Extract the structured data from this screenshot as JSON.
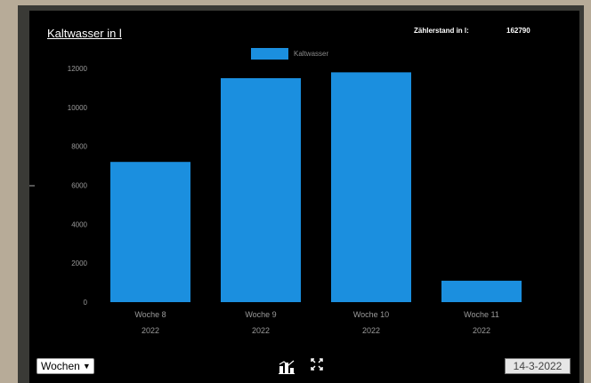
{
  "header": {
    "title": "Kaltwasser in l",
    "meter_label": "Zählerstand in l:",
    "meter_value": "162790"
  },
  "controls": {
    "period_selected": "Wochen",
    "date_value": "14-3-2022"
  },
  "icons": {
    "chart_type": "bar-chart-icon",
    "fullscreen": "fullscreen-icon",
    "dropdown": "chevron-down-icon"
  },
  "colors": {
    "bar": "#1b8fdf",
    "background": "#000000"
  },
  "chart_data": {
    "type": "bar",
    "categories": [
      [
        "Woche 8",
        "2022"
      ],
      [
        "Woche 9",
        "2022"
      ],
      [
        "Woche 10",
        "2022"
      ],
      [
        "Woche 11",
        "2022"
      ]
    ],
    "series": [
      {
        "name": "Kaltwasser",
        "values": [
          7200,
          11500,
          11800,
          1100
        ]
      }
    ],
    "ylim": [
      0,
      12000
    ],
    "yticks": [
      0,
      2000,
      4000,
      6000,
      8000,
      10000,
      12000
    ],
    "xlabel": "",
    "ylabel": "",
    "grid": false,
    "legend_position": "top-center"
  }
}
